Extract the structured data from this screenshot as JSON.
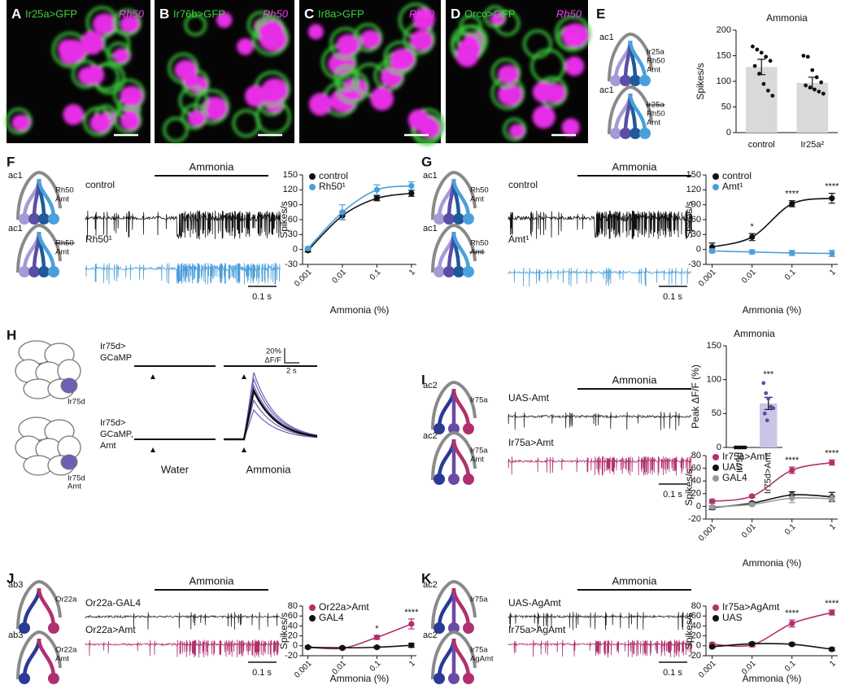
{
  "panel_letters": [
    "A",
    "B",
    "C",
    "D",
    "E",
    "F",
    "G",
    "H",
    "I",
    "J",
    "K"
  ],
  "images": [
    {
      "reporter": "Ir25a>GFP",
      "stain": "Rh50"
    },
    {
      "reporter": "Ir76b>GFP",
      "stain": "Rh50"
    },
    {
      "reporter": "Ir8a>GFP",
      "stain": "Rh50"
    },
    {
      "reporter": "Orco>GFP",
      "stain": "Rh50"
    }
  ],
  "diagrams": [
    {
      "sensillum": "ac1",
      "labels": [
        "Ir25a",
        "Rh50",
        "Amt"
      ]
    },
    {
      "sensillum": "ac1",
      "labels": [
        "Ir25a",
        "Rh50",
        "Amt"
      ],
      "struck": 0
    },
    {
      "sensillum": "ac1",
      "labels": [
        "Rh50",
        "Amt"
      ]
    },
    {
      "sensillum": "ac1",
      "labels": [
        "Rh50",
        "Amt"
      ],
      "struck": 0
    },
    {
      "sensillum": "ac1",
      "labels": [
        "Rh50",
        "Amt"
      ]
    },
    {
      "sensillum": "ac1",
      "labels": [
        "Rh50",
        "Amt"
      ],
      "struck": 1
    },
    {
      "sensillum": "ac2",
      "labels": [
        "Ir75a"
      ]
    },
    {
      "sensillum": "ac2",
      "labels": [
        "Ir75a",
        "Amt"
      ]
    },
    {
      "sensillum": "ab3",
      "labels": [
        "Or22a"
      ]
    },
    {
      "sensillum": "ab3",
      "labels": [
        "Or22a",
        "Amt"
      ]
    },
    {
      "sensillum": "ac2",
      "labels": [
        "Ir75a"
      ]
    },
    {
      "sensillum": "ac2",
      "labels": [
        "Ir75a",
        "AgAmt"
      ]
    }
  ],
  "brains": [
    {
      "genotype": [
        "Ir75d>",
        "GCaMP"
      ],
      "labels": [
        "Ir75d"
      ]
    },
    {
      "genotype": [
        "Ir75d>",
        "GCaMP,",
        "Amt"
      ],
      "labels": [
        "Ir75d",
        "Amt"
      ]
    }
  ],
  "imaging": {
    "rows": [
      "Water",
      "Ammonia"
    ],
    "scale_y": "20%",
    "scale_y_unit": "ΔF/F",
    "scale_x": "2 s"
  },
  "traces": [
    {
      "stimulus": "Ammonia",
      "rows": [
        "control",
        "Rh50¹"
      ],
      "scale": "0.1 s"
    },
    {
      "stimulus": "Ammonia",
      "rows": [
        "control",
        "Amt¹"
      ],
      "scale": "0.1 s"
    },
    {
      "stimulus": "Ammonia",
      "rows": [
        "UAS-Amt",
        "Ir75a>Amt"
      ],
      "scale": "0.1 s"
    },
    {
      "stimulus": "Ammonia",
      "rows": [
        "Or22a-GAL4",
        "Or22a>Amt"
      ],
      "scale": "0.1 s"
    },
    {
      "stimulus": "Ammonia",
      "rows": [
        "UAS-AgAmt",
        "Ir75a>AgAmt"
      ],
      "scale": "0.1 s"
    }
  ],
  "chart_data": [
    {
      "type": "bar",
      "title": "Ammonia",
      "y_label": "Spikes/s",
      "categories": [
        "control",
        "Ir25a²"
      ],
      "values": [
        128,
        97
      ],
      "errors": [
        15,
        11
      ],
      "points": [
        [
          168,
          162,
          156,
          148,
          140,
          130,
          115,
          95,
          82,
          72
        ],
        [
          150,
          148,
          122,
          108,
          98,
          92,
          88,
          84,
          80,
          76
        ]
      ],
      "colors": [
        "#d9d9d9",
        "#d9d9d9"
      ],
      "point_colors": [
        "#111111",
        "#111111"
      ],
      "ylim": [
        0,
        200
      ],
      "yticks": [
        0,
        50,
        100,
        150,
        200
      ]
    },
    {
      "type": "line",
      "x_label": "Ammonia (%)",
      "y_label": "Spikes/s",
      "x": [
        0.001,
        0.01,
        0.1,
        1
      ],
      "log_x": true,
      "xlim": [
        0.0007,
        1.4
      ],
      "xticks": [
        0.001,
        0.01,
        0.1,
        1
      ],
      "ylim": [
        -30,
        150
      ],
      "yticks": [
        -30,
        0,
        30,
        60,
        90,
        120,
        150
      ],
      "legend": "upper left",
      "series": [
        {
          "name": "control",
          "color": "#111111",
          "values": [
            -2,
            68,
            103,
            113
          ],
          "errors": [
            3,
            8,
            5,
            6
          ]
        },
        {
          "name": "Rh50¹",
          "color": "#4a9fd8",
          "values": [
            2,
            75,
            120,
            128
          ],
          "errors": [
            3,
            15,
            10,
            8
          ]
        }
      ]
    },
    {
      "type": "line",
      "x_label": "Ammonia (%)",
      "y_label": "Spikes/s",
      "x": [
        0.001,
        0.01,
        0.1,
        1
      ],
      "log_x": true,
      "xlim": [
        0.0007,
        1.4
      ],
      "xticks": [
        0.001,
        0.01,
        0.1,
        1
      ],
      "ylim": [
        -30,
        150
      ],
      "yticks": [
        -30,
        0,
        30,
        60,
        90,
        120,
        150
      ],
      "legend": "upper left",
      "series": [
        {
          "name": "control",
          "color": "#111111",
          "values": [
            5,
            25,
            92,
            103
          ],
          "errors": [
            8,
            7,
            6,
            10
          ]
        },
        {
          "name": "Amt¹",
          "color": "#4a9fd8",
          "values": [
            -3,
            -5,
            -7,
            -8
          ],
          "errors": [
            4,
            4,
            5,
            6
          ]
        }
      ],
      "annotations": [
        {
          "text": "*",
          "x": 0.01
        },
        {
          "text": "****",
          "x": 0.1
        },
        {
          "text": "****",
          "x": 1
        }
      ]
    },
    {
      "type": "bar",
      "title": "Ammonia",
      "y_label": "Peak ΔF/F (%)",
      "categories": [
        "Ir75d",
        "Ir75d>Amt"
      ],
      "values": [
        0,
        65
      ],
      "errors": [
        1,
        9
      ],
      "points": [
        [
          0,
          0,
          0,
          0,
          0
        ],
        [
          95,
          80,
          72,
          60,
          58,
          50,
          40
        ]
      ],
      "colors": [
        "#ffffff",
        "#c9c5e6"
      ],
      "point_colors": [
        "#111111",
        "#5b4ea6"
      ],
      "ylim": [
        0,
        150
      ],
      "yticks": [
        0,
        50,
        100,
        150
      ],
      "annotations": [
        {
          "text": "***",
          "category": 1
        }
      ]
    },
    {
      "type": "line",
      "x_label": "Ammonia (%)",
      "y_label": "Spikes/s",
      "x": [
        0.001,
        0.01,
        0.1,
        1
      ],
      "log_x": true,
      "xlim": [
        0.0007,
        1.4
      ],
      "xticks": [
        0.001,
        0.01,
        0.1,
        1
      ],
      "ylim": [
        -20,
        80
      ],
      "yticks": [
        -20,
        0,
        20,
        40,
        60,
        80
      ],
      "legend": "upper left",
      "series": [
        {
          "name": "Ir75a>Amt",
          "color": "#b0306f",
          "values": [
            8,
            16,
            57,
            69
          ],
          "errors": [
            3,
            2,
            5,
            4
          ]
        },
        {
          "name": "UAS",
          "color": "#111111",
          "values": [
            -2,
            5,
            18,
            15
          ],
          "errors": [
            3,
            2,
            5,
            7
          ]
        },
        {
          "name": "GAL4",
          "color": "#9a9a9a",
          "values": [
            -1,
            3,
            13,
            12
          ],
          "errors": [
            2,
            2,
            7,
            5
          ]
        }
      ],
      "annotations": [
        {
          "text": "****",
          "x": 0.1
        },
        {
          "text": "****",
          "x": 1
        }
      ]
    },
    {
      "type": "line",
      "x_label": "Ammonia (%)",
      "y_label": "Spikes/s",
      "x": [
        0.001,
        0.01,
        0.1,
        1
      ],
      "log_x": true,
      "xlim": [
        0.0007,
        1.4
      ],
      "xticks": [
        0.001,
        0.01,
        0.1,
        1
      ],
      "ylim": [
        -20,
        80
      ],
      "yticks": [
        -20,
        0,
        20,
        40,
        60,
        80
      ],
      "legend": "upper left",
      "series": [
        {
          "name": "Or22a>Amt",
          "color": "#b0306f",
          "values": [
            -3,
            -5,
            17,
            44
          ],
          "errors": [
            2,
            2,
            4,
            10
          ]
        },
        {
          "name": "GAL4",
          "color": "#111111",
          "values": [
            -3,
            -4,
            -3,
            1
          ],
          "errors": [
            2,
            2,
            2,
            4
          ]
        }
      ],
      "annotations": [
        {
          "text": "*",
          "x": 0.1
        },
        {
          "text": "****",
          "x": 1
        }
      ]
    },
    {
      "type": "line",
      "x_label": "Ammonia (%)",
      "y_label": "Spikes/s",
      "x": [
        0.001,
        0.01,
        0.1,
        1
      ],
      "log_x": true,
      "xlim": [
        0.0007,
        1.4
      ],
      "xticks": [
        0.001,
        0.01,
        0.1,
        1
      ],
      "ylim": [
        -20,
        80
      ],
      "yticks": [
        -20,
        0,
        20,
        40,
        60,
        80
      ],
      "legend": "upper left",
      "series": [
        {
          "name": "Ir75a>AgAmt",
          "color": "#b0306f",
          "values": [
            3,
            2,
            45,
            67
          ],
          "errors": [
            3,
            4,
            7,
            5
          ]
        },
        {
          "name": "UAS",
          "color": "#111111",
          "values": [
            -2,
            4,
            3,
            -7
          ],
          "errors": [
            2,
            3,
            3,
            3
          ]
        }
      ],
      "annotations": [
        {
          "text": "****",
          "x": 0.1
        },
        {
          "text": "****",
          "x": 1
        }
      ]
    }
  ]
}
